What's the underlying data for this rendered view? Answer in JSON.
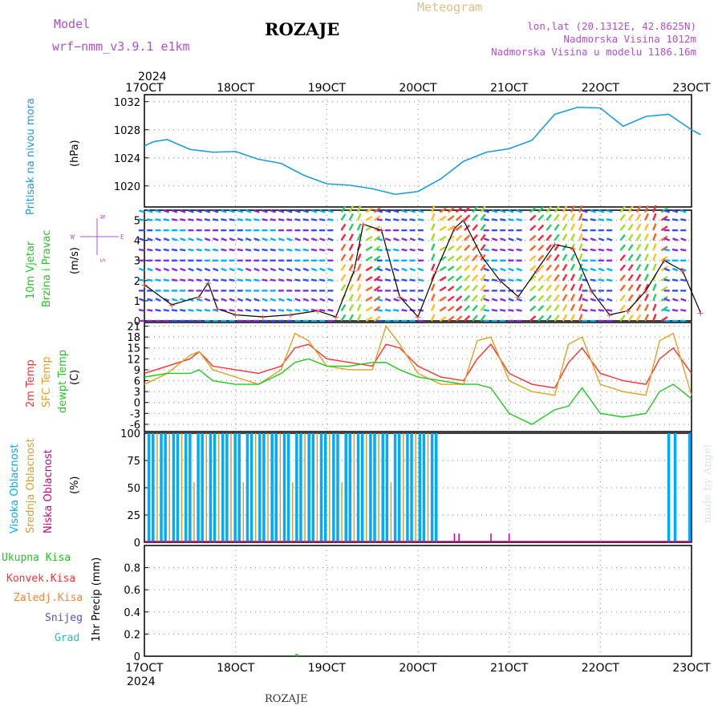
{
  "header": {
    "model_label": "Model",
    "model_name": "wrf−nmm_v3.9.1  e1km",
    "title": "ROZAJE",
    "meteogram": "Meteogram",
    "lonlat": "lon,lat (20.1312E, 42.8625N)",
    "altitude": "Nadmorska Visina 1012m",
    "model_altitude": "Nadmorska Visina u modelu 1186.16m",
    "footer_title": "ROZAJE",
    "credit": "made by Angel",
    "year_top": "2024",
    "year_bottom": "2024"
  },
  "axis": {
    "dates": [
      "17OCT",
      "18OCT",
      "19OCT",
      "20OCT",
      "21OCT",
      "22OCT",
      "23OCT"
    ]
  },
  "colors": {
    "pressure": "#1a9be0",
    "t2m": "#ff3030",
    "tsfc": "#e0a020",
    "dewpoint": "#20c820",
    "cloud_high": "#00aaff",
    "cloud_mid": "#d4a030",
    "cloud_low": "#cc0080",
    "wind_speed": "#000000",
    "gust_marker": "#ff4040"
  },
  "panel_labels": {
    "pressure": {
      "name": "Pritisak na nivou mora",
      "unit": "(hPa)"
    },
    "wind": {
      "name1": "10m Vjetar",
      "name2": "Brzina i Pravac",
      "unit": "(m/s)",
      "compass_n": "N",
      "compass_w": "W",
      "compass_e": "E",
      "compass_s": "S"
    },
    "temp": {
      "t2m": "2m Temp",
      "tsfc": "SFC Temp",
      "dew": "dewpt Temp",
      "unit": "(C)"
    },
    "cloud": {
      "high": "Visoka Oblacnost",
      "mid": "Srednja Oblacnost",
      "low": "Niska Oblacnost",
      "unit": "(%)"
    },
    "precip": {
      "total": "Ukupna Kisa",
      "conv": "Konvek.Kisa",
      "frozen": "Zaledj.Kisa",
      "snow": "Snijeg",
      "grad": "Grad",
      "unit": "1hr Precip (mm)"
    }
  },
  "chart_data": [
    {
      "type": "line",
      "name": "pressure",
      "ylim": [
        1017,
        1033
      ],
      "yticks": [
        "1020",
        "1024",
        "1028",
        "1032"
      ],
      "x_days": [
        0,
        0.1,
        0.25,
        0.5,
        0.75,
        1.0,
        1.25,
        1.5,
        1.75,
        2.0,
        2.25,
        2.5,
        2.75,
        3.0,
        3.25,
        3.5,
        3.75,
        4.0,
        4.25,
        4.5,
        4.75,
        5.0,
        5.25,
        5.5,
        5.75,
        6.0,
        6.1
      ],
      "y": [
        1025.7,
        1026.3,
        1026.6,
        1025.2,
        1024.8,
        1024.9,
        1023.8,
        1023.2,
        1021.5,
        1020.3,
        1020.1,
        1019.6,
        1018.8,
        1019.2,
        1021.0,
        1023.5,
        1024.8,
        1025.3,
        1026.5,
        1030.2,
        1031.2,
        1031.1,
        1028.5,
        1029.9,
        1030.2,
        1028.0,
        1027.3
      ],
      "series": [
        {
          "name": "Pritisak na nivou mora"
        }
      ]
    },
    {
      "type": "line",
      "name": "wind",
      "ylim": [
        0,
        5.5
      ],
      "yticks": [
        "0",
        "1",
        "2",
        "3",
        "4",
        "5"
      ],
      "x_days": [
        0,
        0.3,
        0.6,
        0.7,
        0.8,
        1.0,
        1.3,
        1.6,
        1.9,
        2.1,
        2.3,
        2.4,
        2.6,
        2.8,
        3.0,
        3.2,
        3.4,
        3.5,
        3.7,
        3.9,
        4.1,
        4.3,
        4.5,
        4.7,
        4.9,
        5.1,
        5.3,
        5.5,
        5.7,
        5.9,
        6.1
      ],
      "y": [
        1.8,
        0.8,
        1.2,
        1.9,
        0.6,
        0.3,
        0.2,
        0.3,
        0.5,
        0.2,
        2.5,
        4.8,
        4.5,
        1.2,
        0.2,
        2.5,
        4.6,
        5.0,
        3.2,
        2.0,
        1.2,
        2.5,
        3.8,
        3.6,
        1.5,
        0.3,
        0.5,
        1.5,
        3.0,
        2.5,
        0.4
      ],
      "series": [
        {
          "name": "10m Vjetar"
        }
      ]
    },
    {
      "type": "line",
      "name": "temperature",
      "ylim": [
        -8,
        22
      ],
      "yticks": [
        "21",
        "18",
        "15",
        "12",
        "9",
        "6",
        "3",
        "0",
        "-3",
        "-6"
      ],
      "x_days": [
        0,
        0.25,
        0.5,
        0.6,
        0.75,
        1.0,
        1.25,
        1.5,
        1.65,
        1.8,
        2.0,
        2.25,
        2.5,
        2.65,
        2.8,
        3.0,
        3.25,
        3.5,
        3.65,
        3.8,
        4.0,
        4.25,
        4.5,
        4.65,
        4.8,
        5.0,
        5.25,
        5.5,
        5.65,
        5.8,
        6.0
      ],
      "series": [
        {
          "name": "2m Temp",
          "values": [
            8,
            10,
            12,
            14,
            10,
            9,
            8,
            10,
            15,
            16,
            12,
            11,
            10,
            16,
            15,
            10,
            7,
            6,
            12,
            16,
            8,
            5,
            4,
            11,
            15,
            8,
            6,
            5,
            12,
            15,
            8
          ]
        },
        {
          "name": "SFC Temp",
          "values": [
            5,
            8,
            13,
            14,
            9,
            7,
            5,
            9,
            19,
            17,
            10,
            9,
            9,
            21,
            16,
            8,
            5,
            5,
            17,
            18,
            6,
            3,
            2,
            16,
            18,
            5,
            3,
            2,
            17,
            19,
            2
          ]
        },
        {
          "name": "dewpt Temp",
          "values": [
            7,
            8,
            8,
            9,
            6,
            5,
            5,
            8,
            11,
            12,
            10,
            10,
            11,
            11,
            9,
            7,
            6,
            5,
            5,
            4,
            -3,
            -6,
            -2,
            -1,
            4,
            -3,
            -4,
            -3,
            3,
            5,
            1
          ]
        }
      ]
    },
    {
      "type": "bar",
      "name": "cloud",
      "ylim": [
        0,
        100
      ],
      "yticks": [
        "0",
        "25",
        "50",
        "75",
        "100"
      ],
      "series": [
        {
          "name": "Visoka Oblacnost",
          "note": "full 100% bars from 17OCT to ~20.3OCT, again ~22.7-23OCT"
        },
        {
          "name": "Srednja Oblacnost",
          "note": "mixed high bars 17-20OCT"
        },
        {
          "name": "Niska Oblacnost",
          "note": "low values, sporadic"
        }
      ]
    },
    {
      "type": "bar",
      "name": "precip",
      "ylim": [
        0,
        1.0
      ],
      "yticks": [
        "0",
        "0.2",
        "0.4",
        "0.6",
        "0.8"
      ],
      "series": [
        {
          "name": "Ukupna Kisa",
          "x_days": [
            1.67
          ],
          "values": [
            0.02
          ]
        }
      ]
    }
  ]
}
